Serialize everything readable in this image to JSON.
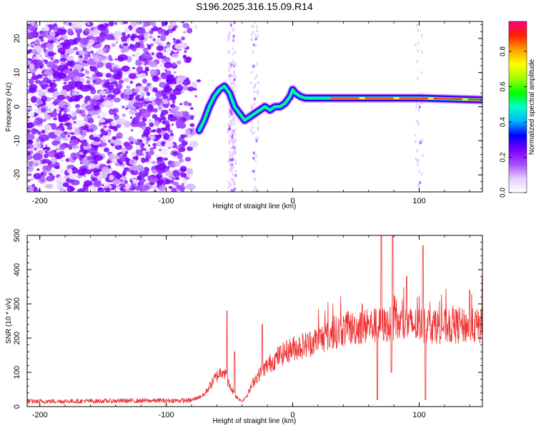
{
  "title": "S196.2025.316.15.09.R14",
  "chart_data": [
    {
      "type": "heatmap",
      "name": "spectrogram",
      "xlabel": "Height of straight line (km)",
      "ylabel": "Frequency (Hz)",
      "xlim": [
        -210,
        150
      ],
      "ylim": [
        -25,
        25
      ],
      "xticks": [
        -200,
        -100,
        0,
        100
      ],
      "yticks": [
        -20,
        -10,
        0,
        10,
        20
      ],
      "colorbar": {
        "label": "Normalized spectral amplitude",
        "ticks": [
          0.0,
          0.2,
          0.4,
          0.6,
          0.8
        ],
        "range": [
          0,
          0.97
        ],
        "colors": [
          "#ffffff",
          "#e4ccff",
          "#a64dff",
          "#7a00ff",
          "#0000ff",
          "#00b4ff",
          "#00ffc8",
          "#00ff00",
          "#a0ff00",
          "#ffff00",
          "#ffa000",
          "#ff2000",
          "#ff0080"
        ]
      },
      "ridge": {
        "x": [
          -74,
          -70,
          -66,
          -62,
          -58,
          -54,
          -50,
          -46,
          -42,
          -38,
          -34,
          -30,
          -26,
          -22,
          -18,
          -14,
          -10,
          -6,
          -2,
          0,
          2,
          6,
          10,
          20,
          30,
          60,
          100,
          150
        ],
        "y": [
          -7,
          -4,
          0,
          3,
          5,
          6,
          4,
          0,
          -2,
          -4,
          -3,
          -2,
          -1,
          0,
          -1,
          0,
          0,
          1,
          3,
          5,
          4,
          3,
          2.5,
          2.5,
          2.5,
          2.5,
          2.5,
          2
        ]
      }
    },
    {
      "type": "line",
      "name": "snr",
      "xlabel": "Height of straight line (km)",
      "ylabel": "SNR (10 * v/v)",
      "xlim": [
        -210,
        150
      ],
      "ylim": [
        0,
        500
      ],
      "xticks": [
        -200,
        -100,
        0,
        100
      ],
      "yticks": [
        0,
        100,
        200,
        300,
        400,
        500
      ],
      "color": "#ee3030",
      "envelope": {
        "x": [
          -210,
          -80,
          -70,
          -62,
          -55,
          -50,
          -45,
          -40,
          -35,
          -30,
          -25,
          -20,
          -10,
          0,
          10,
          20,
          30,
          40,
          50,
          60,
          80,
          100,
          120,
          150
        ],
        "y": [
          15,
          18,
          35,
          80,
          110,
          60,
          30,
          15,
          40,
          80,
          100,
          120,
          150,
          170,
          180,
          195,
          210,
          225,
          230,
          235,
          240,
          238,
          235,
          235
        ]
      },
      "spikes": [
        {
          "x": -52,
          "y": 280
        },
        {
          "x": -46,
          "y": 160
        },
        {
          "x": -24,
          "y": 240
        },
        {
          "x": 55,
          "y": 300
        },
        {
          "x": 67,
          "y": 410
        },
        {
          "x": 70,
          "y": 500
        },
        {
          "x": 79,
          "y": 500
        },
        {
          "x": 90,
          "y": 380
        },
        {
          "x": 103,
          "y": 470
        },
        {
          "x": 140,
          "y": 340
        },
        {
          "x": 150,
          "y": 380
        }
      ],
      "dips": [
        {
          "x": 67,
          "y": 20
        },
        {
          "x": 78,
          "y": 100
        },
        {
          "x": 105,
          "y": 20
        }
      ]
    }
  ]
}
